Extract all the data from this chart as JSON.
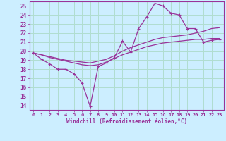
{
  "xlabel": "Windchill (Refroidissement éolien,°C)",
  "background_color": "#cceeff",
  "grid_color": "#b0ddd0",
  "line_color": "#993399",
  "x_hours": [
    0,
    1,
    2,
    3,
    4,
    5,
    6,
    7,
    8,
    9,
    10,
    11,
    12,
    13,
    14,
    15,
    16,
    17,
    18,
    19,
    20,
    21,
    22,
    23
  ],
  "windchill": [
    19.8,
    19.1,
    18.6,
    18.0,
    18.0,
    17.5,
    16.5,
    13.9,
    18.3,
    18.7,
    19.3,
    21.1,
    19.9,
    22.5,
    23.8,
    25.3,
    25.0,
    24.2,
    24.0,
    22.5,
    22.5,
    21.0,
    21.2,
    21.3
  ],
  "line1": [
    19.8,
    19.6,
    19.4,
    19.2,
    19.0,
    18.9,
    18.8,
    18.7,
    18.9,
    19.1,
    19.5,
    20.0,
    20.4,
    20.7,
    21.0,
    21.3,
    21.5,
    21.6,
    21.7,
    21.8,
    22.0,
    22.2,
    22.5,
    22.6
  ],
  "line2": [
    19.8,
    19.6,
    19.3,
    19.1,
    18.9,
    18.7,
    18.5,
    18.4,
    18.5,
    18.8,
    19.2,
    19.6,
    19.9,
    20.2,
    20.5,
    20.7,
    20.9,
    21.0,
    21.1,
    21.2,
    21.3,
    21.3,
    21.4,
    21.4
  ],
  "ylim": [
    13.5,
    25.5
  ],
  "yticks": [
    14,
    15,
    16,
    17,
    18,
    19,
    20,
    21,
    22,
    23,
    24,
    25
  ],
  "xlim": [
    -0.5,
    23.5
  ],
  "xtick_labels": [
    "0",
    "1",
    "2",
    "3",
    "4",
    "5",
    "6",
    "7",
    "8",
    "9",
    "10",
    "11",
    "12",
    "13",
    "14",
    "15",
    "16",
    "17",
    "18",
    "19",
    "20",
    "21",
    "22",
    "23"
  ]
}
